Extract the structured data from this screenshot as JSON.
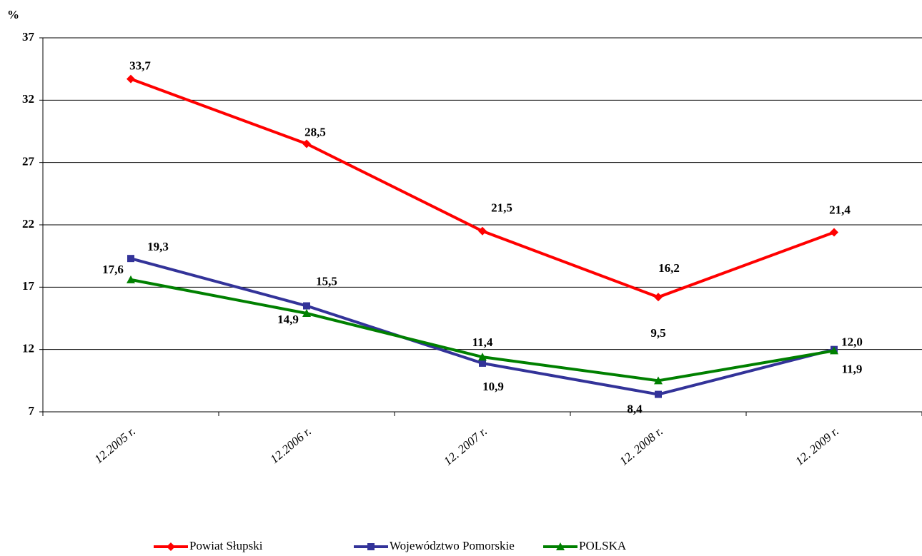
{
  "chart_data": {
    "type": "line",
    "y_label": "%",
    "categories": [
      "12.2005 r.",
      "12.2006 r.",
      "12. 2007 r.",
      "12. 2008 r.",
      "12. 2009 r."
    ],
    "series": [
      {
        "name": "Powiat Słupski",
        "color": "#ff0000",
        "marker": "diamond",
        "values": [
          33.7,
          28.5,
          21.5,
          16.2,
          21.4
        ],
        "value_labels": [
          "33,7",
          "28,5",
          "21,5",
          "16,2",
          "21,4"
        ]
      },
      {
        "name": "Województwo Pomorskie",
        "color": "#333399",
        "marker": "square",
        "values": [
          19.3,
          15.5,
          10.9,
          8.4,
          12.0
        ],
        "value_labels": [
          "19,3",
          "15,5",
          "10,9",
          "8,4",
          "12,0"
        ]
      },
      {
        "name": "POLSKA",
        "color": "#008000",
        "marker": "triangle",
        "values": [
          17.6,
          14.9,
          11.4,
          9.5,
          11.9
        ],
        "value_labels": [
          "17,6",
          "14,9",
          "11,4",
          "9,5",
          "11,9"
        ]
      }
    ],
    "ylim": [
      7,
      37
    ],
    "yticks": [
      7,
      12,
      17,
      22,
      27,
      32,
      37
    ],
    "grid": true,
    "legend": "bottom"
  }
}
